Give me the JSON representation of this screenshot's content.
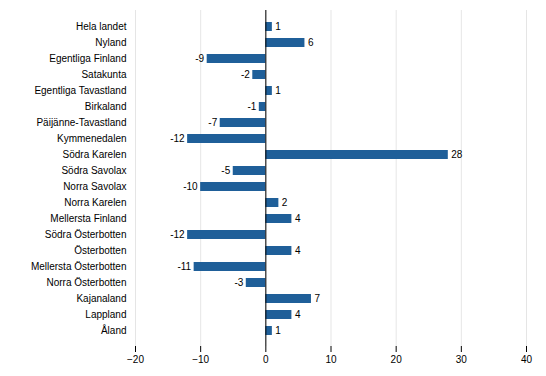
{
  "chart_data": {
    "type": "bar",
    "orientation": "horizontal",
    "categories": [
      "Hela landet",
      "Nyland",
      "Egentliga Finland",
      "Satakunta",
      "Egentliga Tavastland",
      "Birkaland",
      "Päijänne-Tavastland",
      "Kymmenedalen",
      "Södra Karelen",
      "Södra Savolax",
      "Norra Savolax",
      "Norra Karelen",
      "Mellersta Finland",
      "Södra Österbotten",
      "Österbotten",
      "Mellersta Österbotten",
      "Norra Österbotten",
      "Kajanaland",
      "Lappland",
      "Åland"
    ],
    "values": [
      1,
      6,
      -9,
      -2,
      1,
      -1,
      -7,
      -12,
      28,
      -5,
      -10,
      2,
      4,
      -12,
      4,
      -11,
      -3,
      7,
      4,
      1
    ],
    "color": "#1F5F99",
    "xlim": [
      -20,
      40
    ],
    "xticks": [
      -20,
      -10,
      0,
      10,
      20,
      30,
      40
    ],
    "grid": true,
    "data_labels": true
  }
}
